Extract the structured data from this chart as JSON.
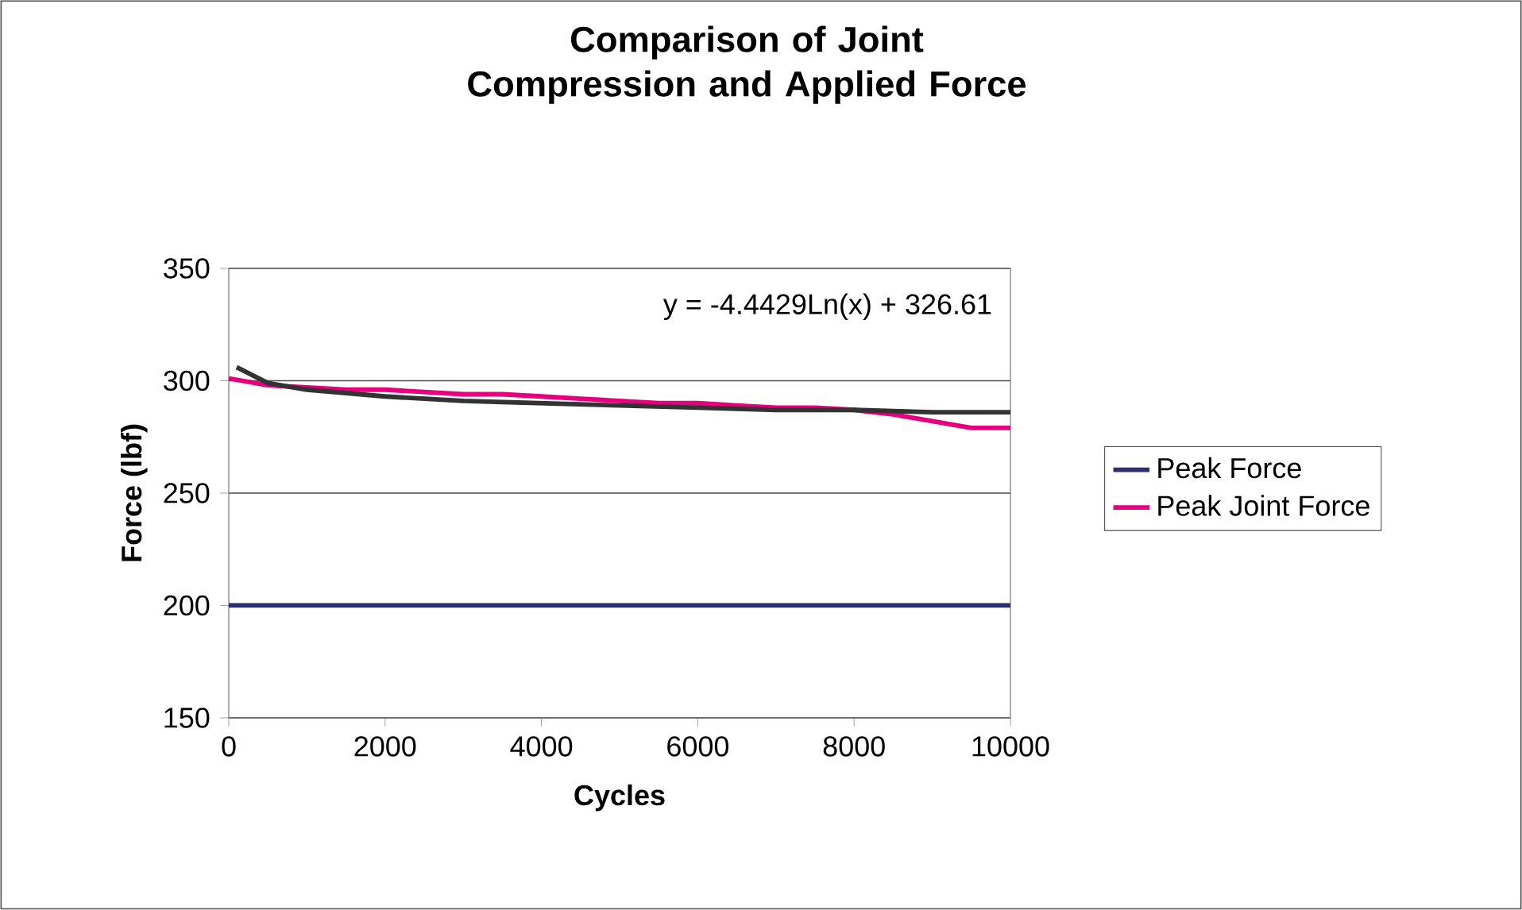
{
  "chart_data": {
    "type": "line",
    "title": "Comparison of Joint Compression and Applied Force",
    "xlabel": "Cycles",
    "ylabel": "Force (lbf)",
    "xlim": [
      0,
      10000
    ],
    "xticks": [
      0,
      2000,
      4000,
      6000,
      8000,
      10000
    ],
    "ylim": [
      150,
      350
    ],
    "yticks": [
      150,
      200,
      250,
      300,
      350
    ],
    "grid": "y",
    "legend": "right",
    "marker": "none",
    "line_style": "solid",
    "annotations": [
      "y = -4.4429Ln(x) + 326.61"
    ],
    "series": [
      {
        "name": "Peak Force",
        "color": "#2e2e6e",
        "x": [
          0,
          2000,
          4000,
          6000,
          8000,
          10000
        ],
        "values": [
          200,
          200,
          200,
          200,
          200,
          200
        ]
      },
      {
        "name": "Peak Joint Force",
        "color": "#e6007e",
        "x": [
          0,
          500,
          1000,
          1500,
          2000,
          2500,
          3000,
          3500,
          4000,
          4500,
          5000,
          5500,
          6000,
          6500,
          7000,
          7500,
          8000,
          8500,
          9000,
          9500,
          10000
        ],
        "values": [
          301,
          298,
          297,
          296,
          296,
          295,
          294,
          294,
          293,
          292,
          291,
          290,
          290,
          289,
          288,
          288,
          287,
          285,
          282,
          279,
          279
        ]
      },
      {
        "type": "line",
        "color": "#333333",
        "x": [
          100,
          500,
          1000,
          2000,
          3000,
          4000,
          5000,
          6000,
          7000,
          8000,
          9000,
          10000
        ],
        "values": [
          306,
          299,
          296,
          293,
          291,
          290,
          289,
          288,
          287,
          287,
          286,
          286
        ]
      }
    ]
  }
}
